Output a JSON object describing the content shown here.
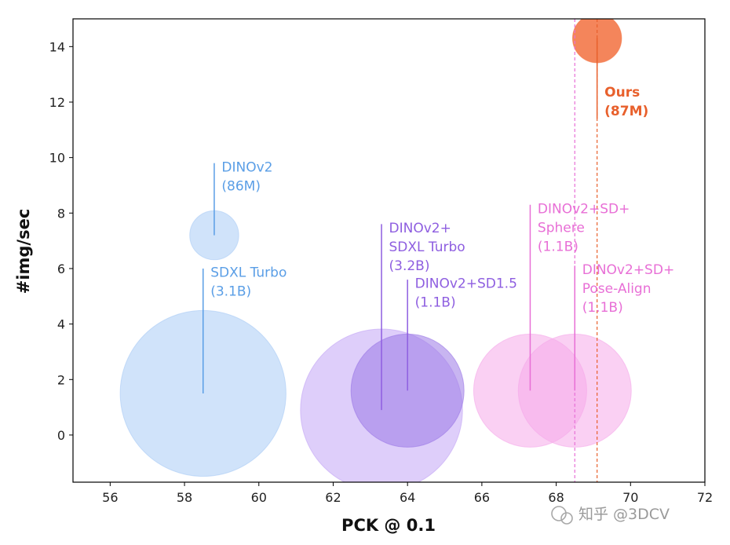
{
  "chart_data": {
    "type": "scatter",
    "title": "",
    "xlabel": "PCK @ 0.1",
    "ylabel": "#img/sec",
    "xlim": [
      55,
      72
    ],
    "ylim": [
      -1.7,
      15
    ],
    "xticks": [
      "56",
      "58",
      "60",
      "62",
      "64",
      "66",
      "68",
      "70",
      "72"
    ],
    "yticks": [
      "0",
      "2",
      "4",
      "6",
      "8",
      "10",
      "12",
      "14"
    ],
    "grid": false,
    "points": [
      {
        "name": "SDXL Turbo",
        "x": 58.5,
        "y": 1.5,
        "size_rel": 4.4,
        "color": "#aaccf5",
        "label_color": "#5a9ee6",
        "label_lines": [
          "SDXL Turbo",
          "(3.1B)"
        ],
        "label_x": 58.7,
        "label_y": 5.7,
        "leader_top": 6.0,
        "bold": false
      },
      {
        "name": "DINOv2",
        "x": 58.8,
        "y": 7.2,
        "size_rel": 1.3,
        "color": "#aaccf5",
        "label_color": "#5a9ee6",
        "label_lines": [
          "DINOv2",
          "(86M)"
        ],
        "label_x": 59.0,
        "label_y": 9.5,
        "leader_top": 9.8,
        "bold": false
      },
      {
        "name": "DINOv2+SDXL Turbo",
        "x": 63.3,
        "y": 0.9,
        "size_rel": 4.3,
        "color": "#c3a5f5",
        "label_color": "#8e5ee0",
        "label_lines": [
          "DINOv2+",
          "SDXL Turbo",
          "(3.2B)"
        ],
        "label_x": 63.5,
        "label_y": 7.3,
        "leader_top": 7.6,
        "bold": false
      },
      {
        "name": "DINOv2+SD1.5",
        "x": 64.0,
        "y": 1.6,
        "size_rel": 3.0,
        "color": "#9b78e6",
        "label_color": "#8e5ee0",
        "label_lines": [
          "DINOv2+SD1.5",
          "(1.1B)"
        ],
        "label_x": 64.2,
        "label_y": 5.3,
        "leader_top": 5.6,
        "bold": false
      },
      {
        "name": "DINOv2+SD+Sphere",
        "x": 67.3,
        "y": 1.6,
        "size_rel": 3.0,
        "color": "#f5a9e9",
        "label_color": "#e86fd6",
        "label_lines": [
          "DINOv2+SD+",
          "Sphere",
          "(1.1B)"
        ],
        "label_x": 67.5,
        "label_y": 8.0,
        "leader_top": 8.3,
        "bold": false
      },
      {
        "name": "DINOv2+SD+Pose-Align",
        "x": 68.5,
        "y": 1.6,
        "size_rel": 3.0,
        "color": "#f5a9e9",
        "label_color": "#e86fd6",
        "label_lines": [
          "DINOv2+SD+",
          "Pose-Align",
          "(1.1B)"
        ],
        "label_x": 68.7,
        "label_y": 5.8,
        "leader_top": 6.1,
        "bold": false
      },
      {
        "name": "Ours",
        "x": 69.1,
        "y": 14.3,
        "size_rel": 1.3,
        "color": "#f2703e",
        "label_color": "#e8602c",
        "label_lines": [
          "Ours",
          "(87M)"
        ],
        "label_x": 69.3,
        "label_y": 12.2,
        "leader_top": 11.4,
        "leader_from": 14.3,
        "bold": true
      }
    ],
    "vlines": [
      {
        "x": 68.5,
        "color": "#e86fd6",
        "style": "dashed"
      },
      {
        "x": 69.1,
        "color": "#e8602c",
        "style": "dashed"
      }
    ]
  },
  "watermark": "知乎 @3DCV"
}
